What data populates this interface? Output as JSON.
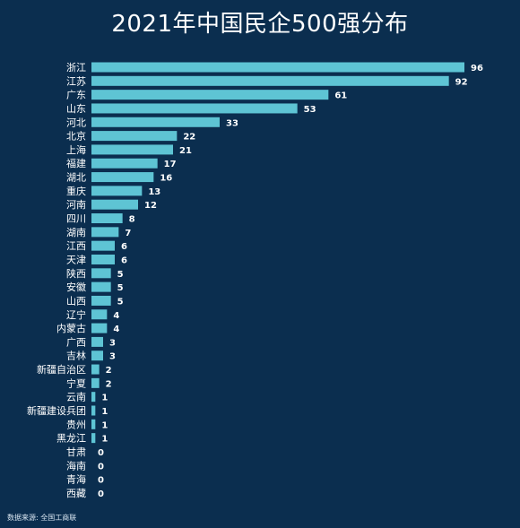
{
  "chart_data": {
    "type": "bar",
    "orientation": "horizontal",
    "title": "2021年中国民企500强分布",
    "categories": [
      "浙江",
      "江苏",
      "广东",
      "山东",
      "河北",
      "北京",
      "上海",
      "福建",
      "湖北",
      "重庆",
      "河南",
      "四川",
      "湖南",
      "江西",
      "天津",
      "陕西",
      "安徽",
      "山西",
      "辽宁",
      "内蒙古",
      "广西",
      "吉林",
      "新疆自治区",
      "宁夏",
      "云南",
      "新疆建设兵团",
      "贵州",
      "黑龙江",
      "甘肃",
      "海南",
      "青海",
      "西藏"
    ],
    "values": [
      96,
      92,
      61,
      53,
      33,
      22,
      21,
      17,
      16,
      13,
      12,
      8,
      7,
      6,
      6,
      5,
      5,
      5,
      4,
      4,
      3,
      3,
      2,
      2,
      1,
      1,
      1,
      1,
      0,
      0,
      0,
      0
    ],
    "xlim": [
      0,
      96
    ],
    "grid": false,
    "bar_color": "#5ec4d4",
    "background_color": "#0b2e4f"
  },
  "footer": {
    "source": "数据来源: 全国工商联"
  }
}
